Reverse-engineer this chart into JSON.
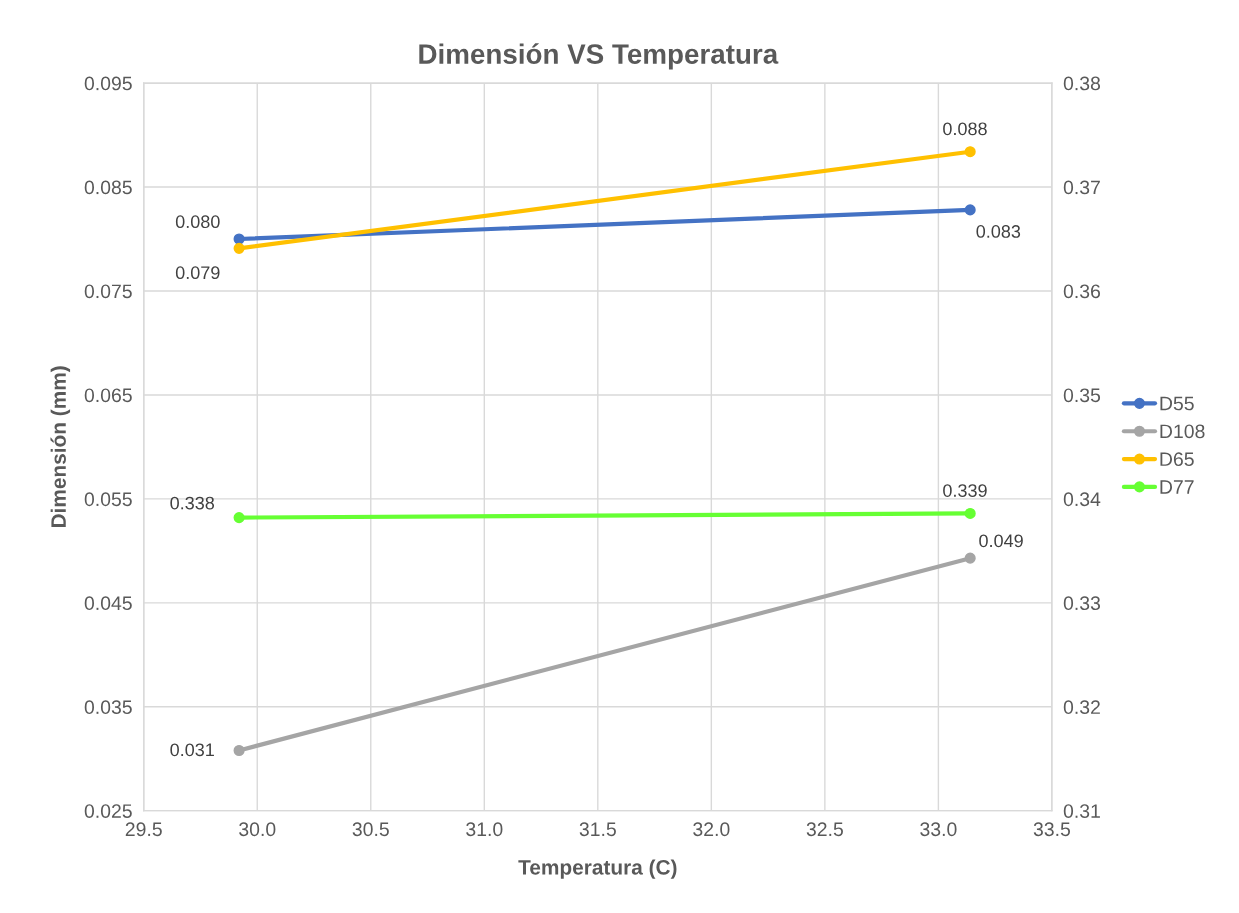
{
  "chart_data": {
    "type": "line",
    "title": "Dimensión VS Temperatura",
    "xlabel": "Temperatura (C)",
    "ylabel": "Dimensión (mm)",
    "xlim": [
      29.5,
      33.5
    ],
    "xticks": [
      29.5,
      {
        "value": 30,
        "label": "30.0"
      },
      30.5,
      {
        "value": 31,
        "label": "31.0"
      },
      31.5,
      {
        "value": 32,
        "label": "32.0"
      },
      32.5,
      {
        "value": 33,
        "label": "33.0"
      },
      33.5
    ],
    "ylim": [
      0.025,
      0.095
    ],
    "yticks": [
      0.025,
      0.035,
      0.045,
      0.055,
      0.065,
      0.075,
      0.085,
      0.095
    ],
    "y2lim": [
      0.31,
      0.38
    ],
    "y2ticks": [
      0.31,
      0.32,
      0.33,
      0.34,
      0.35,
      0.36,
      0.37,
      0.38
    ],
    "x": [
      29.92,
      33.14
    ],
    "grid": true,
    "legend": "right",
    "marker": "circle",
    "line_style": "solid",
    "series": [
      {
        "name": "D55",
        "color": "#4472c4",
        "values": [
          0.08,
          0.0828
        ],
        "value_labels": [
          "0.080",
          "0.083"
        ]
      },
      {
        "name": "D108",
        "color": "#a5a5a5",
        "values": [
          0.0308,
          0.0493
        ],
        "value_labels": [
          "0.031",
          "0.049"
        ]
      },
      {
        "name": "D65",
        "color": "#ffc000",
        "values": [
          0.0791,
          0.0884
        ],
        "value_labels": [
          "0.079",
          "0.088"
        ]
      },
      {
        "name": "D77",
        "color": "#66ff33",
        "axis": "y2",
        "values": [
          0.3382,
          0.3386
        ],
        "value_labels": [
          "0.338",
          "0.339"
        ]
      }
    ]
  }
}
